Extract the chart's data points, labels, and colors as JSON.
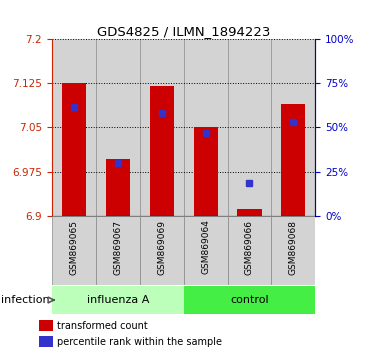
{
  "title": "GDS4825 / ILMN_1894223",
  "samples": [
    "GSM869065",
    "GSM869067",
    "GSM869069",
    "GSM869064",
    "GSM869066",
    "GSM869068"
  ],
  "red_values": [
    7.125,
    6.997,
    7.12,
    7.05,
    6.912,
    7.09
  ],
  "blue_values": [
    7.085,
    6.99,
    7.075,
    7.04,
    6.955,
    7.06
  ],
  "ymin": 6.9,
  "ymax": 7.2,
  "yticks": [
    6.9,
    6.975,
    7.05,
    7.125,
    7.2
  ],
  "right_yticks": [
    0,
    25,
    50,
    75,
    100
  ],
  "bar_color": "#cc0000",
  "blue_color": "#3333cc",
  "bar_width": 0.55,
  "group1_color": "#bbffbb",
  "group2_color": "#44ee44",
  "group_label": "infection",
  "group1_label": "influenza A",
  "group2_label": "control",
  "legend_red": "transformed count",
  "legend_blue": "percentile rank within the sample",
  "left_tick_color": "#cc2200",
  "right_tick_color": "#0000cc",
  "col_bg": "#d3d3d3",
  "col_edge": "#888888"
}
